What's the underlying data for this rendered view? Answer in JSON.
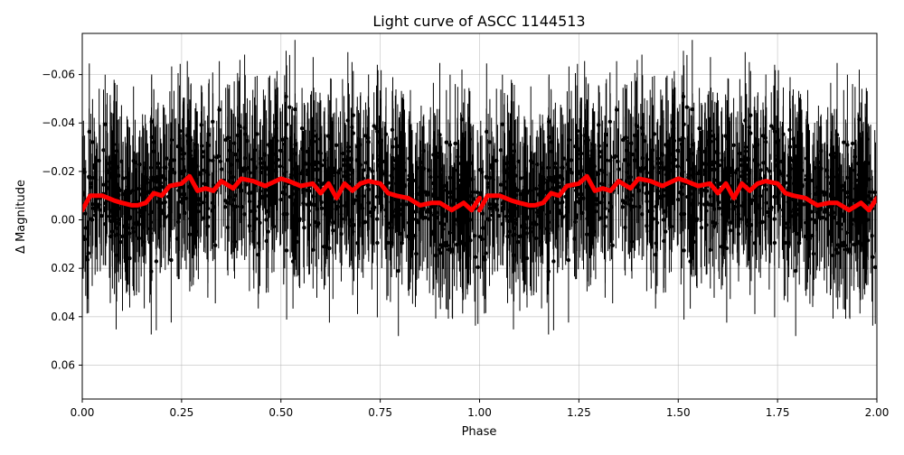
{
  "chart_data": {
    "type": "scatter",
    "title": "Light curve of ASCC 1144513",
    "xlabel": "Phase",
    "ylabel": "Δ Magnitude",
    "xlim": [
      0.0,
      2.0
    ],
    "ylim": [
      0.074,
      -0.077
    ],
    "y_inverted": true,
    "grid": true,
    "x_ticks": [
      0.0,
      0.25,
      0.5,
      0.75,
      1.0,
      1.25,
      1.5,
      1.75,
      2.0
    ],
    "x_tick_labels": [
      "0.00",
      "0.25",
      "0.50",
      "0.75",
      "1.00",
      "1.25",
      "1.50",
      "1.75",
      "2.00"
    ],
    "y_ticks": [
      -0.06,
      -0.04,
      -0.02,
      0.0,
      0.02,
      0.04,
      0.06
    ],
    "y_tick_labels": [
      "−0.06",
      "−0.04",
      "−0.02",
      "0.00",
      "0.02",
      "0.04",
      "0.06"
    ],
    "series": [
      {
        "kind": "observations",
        "style": "points with vertical error bars",
        "color": "#000000",
        "phase_range": [
          0.0,
          1.0
        ],
        "repeated_over_two_phases": true,
        "mean_magnitude": -0.013,
        "point_scatter_std": 0.022,
        "typical_error": 0.022
      },
      {
        "kind": "binned model",
        "style": "thick line",
        "color": "#ff0000",
        "x": [
          0.0,
          0.02,
          0.05,
          0.08,
          0.1,
          0.125,
          0.14,
          0.16,
          0.18,
          0.2,
          0.22,
          0.25,
          0.27,
          0.29,
          0.31,
          0.33,
          0.35,
          0.38,
          0.4,
          0.43,
          0.46,
          0.5,
          0.52,
          0.55,
          0.58,
          0.6,
          0.62,
          0.64,
          0.66,
          0.68,
          0.7,
          0.72,
          0.75,
          0.77,
          0.79,
          0.82,
          0.85,
          0.88,
          0.9,
          0.93,
          0.96,
          0.98,
          1.0
        ],
        "y": [
          -0.004,
          -0.01,
          -0.01,
          -0.008,
          -0.007,
          -0.006,
          -0.006,
          -0.007,
          -0.011,
          -0.01,
          -0.014,
          -0.015,
          -0.018,
          -0.012,
          -0.013,
          -0.012,
          -0.016,
          -0.013,
          -0.017,
          -0.016,
          -0.014,
          -0.017,
          -0.016,
          -0.014,
          -0.015,
          -0.011,
          -0.015,
          -0.009,
          -0.015,
          -0.012,
          -0.015,
          -0.016,
          -0.015,
          -0.011,
          -0.01,
          -0.009,
          -0.006,
          -0.007,
          -0.007,
          -0.004,
          -0.007,
          -0.004,
          -0.009
        ]
      }
    ]
  }
}
